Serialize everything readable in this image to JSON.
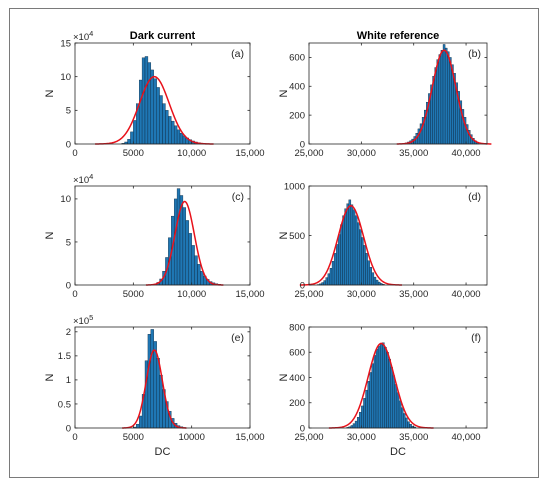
{
  "colors": {
    "bar": "#1f77b4",
    "bar_edge": "#0b1f33",
    "fit": "#e8121b",
    "axis": "#262626"
  },
  "chart_data": [
    {
      "id": "a",
      "type": "bar",
      "subplot_label": "(a)",
      "title": "Dark current",
      "xlabel": "",
      "ylabel": "N",
      "xlim": [
        0,
        15000
      ],
      "ylim": [
        0,
        150000
      ],
      "xticks": [
        "0",
        "5000",
        "10,000",
        "15,000"
      ],
      "xtick_values": [
        0,
        5000,
        10000,
        15000
      ],
      "yticks": [
        "0",
        "5",
        "10",
        "15"
      ],
      "ytick_values": [
        0,
        50000,
        100000,
        150000
      ],
      "y_exponent": "4",
      "bin_width": 250,
      "bin_centers": [
        4125,
        4375,
        4625,
        4875,
        5125,
        5375,
        5625,
        5875,
        6125,
        6375,
        6625,
        6875,
        7125,
        7375,
        7625,
        7875,
        8125,
        8375,
        8625,
        8875,
        9125,
        9375,
        9625,
        9875,
        10125,
        10375,
        10625,
        10875,
        11125,
        11375,
        11625
      ],
      "values": [
        1000,
        3000,
        7000,
        18000,
        35000,
        60000,
        95000,
        128000,
        130000,
        121000,
        110000,
        97000,
        84000,
        72000,
        60000,
        50000,
        41000,
        34000,
        27000,
        21000,
        16000,
        12000,
        9000,
        6500,
        4500,
        3000,
        2000,
        1300,
        800,
        400,
        200
      ],
      "fit": {
        "mean": 6800,
        "sd": 1270,
        "peak": 100000
      }
    },
    {
      "id": "b",
      "type": "bar",
      "subplot_label": "(b)",
      "title": "White reference",
      "xlabel": "",
      "ylabel": "N",
      "xlim": [
        25000,
        42000
      ],
      "ylim": [
        0,
        700
      ],
      "xticks": [
        "25,000",
        "30,000",
        "35,000",
        "40,000"
      ],
      "xtick_values": [
        25000,
        30000,
        35000,
        40000
      ],
      "yticks": [
        "0",
        "200",
        "400",
        "600"
      ],
      "ytick_values": [
        0,
        200,
        400,
        600
      ],
      "y_exponent": "",
      "bin_width": 200,
      "bin_centers": [
        34100,
        34300,
        34500,
        34700,
        34900,
        35100,
        35300,
        35500,
        35700,
        35900,
        36100,
        36300,
        36500,
        36700,
        36900,
        37100,
        37300,
        37500,
        37700,
        37900,
        38100,
        38300,
        38500,
        38700,
        38900,
        39100,
        39300,
        39500,
        39700,
        39900,
        40100,
        40300,
        40500,
        40700,
        40900,
        41100
      ],
      "values": [
        5,
        8,
        14,
        22,
        34,
        52,
        75,
        105,
        140,
        185,
        235,
        290,
        350,
        410,
        470,
        530,
        585,
        620,
        650,
        690,
        665,
        640,
        600,
        550,
        490,
        425,
        365,
        300,
        240,
        185,
        135,
        95,
        65,
        40,
        22,
        12
      ],
      "fit": {
        "mean": 37900,
        "sd": 1130,
        "peak": 650
      }
    },
    {
      "id": "c",
      "type": "bar",
      "subplot_label": "(c)",
      "title": "",
      "xlabel": "",
      "ylabel": "N",
      "xlim": [
        0,
        15000
      ],
      "ylim": [
        0,
        115000
      ],
      "xticks": [
        "0",
        "5000",
        "10,000",
        "15,000"
      ],
      "xtick_values": [
        0,
        5000,
        10000,
        15000
      ],
      "yticks": [
        "0",
        "5",
        "10"
      ],
      "ytick_values": [
        0,
        50000,
        100000
      ],
      "y_exponent": "4",
      "bin_width": 250,
      "bin_centers": [
        6875,
        7125,
        7375,
        7625,
        7875,
        8125,
        8375,
        8625,
        8875,
        9125,
        9375,
        9625,
        9875,
        10125,
        10375,
        10625,
        10875,
        11125,
        11375,
        11625,
        11875,
        12125,
        12375
      ],
      "values": [
        1000,
        3000,
        7000,
        16000,
        32000,
        55000,
        80000,
        100000,
        112000,
        104000,
        90000,
        75000,
        60000,
        46000,
        34000,
        24000,
        16000,
        10500,
        6500,
        4000,
        2500,
        1500,
        800
      ],
      "fit": {
        "mean": 9400,
        "sd": 830,
        "peak": 97000
      }
    },
    {
      "id": "d",
      "type": "bar",
      "subplot_label": "(d)",
      "title": "",
      "xlabel": "",
      "ylabel": "N",
      "xlim": [
        25000,
        42000
      ],
      "ylim": [
        0,
        1000
      ],
      "xticks": [
        "25,000",
        "30,000",
        "35,000",
        "40,000"
      ],
      "xtick_values": [
        25000,
        30000,
        35000,
        40000
      ],
      "yticks": [
        "0",
        "500",
        "1000"
      ],
      "ytick_values": [
        0,
        500,
        1000
      ],
      "y_exponent": "",
      "bin_width": 200,
      "bin_centers": [
        25900,
        26100,
        26300,
        26500,
        26700,
        26900,
        27100,
        27300,
        27500,
        27700,
        27900,
        28100,
        28300,
        28500,
        28700,
        28900,
        29100,
        29300,
        29500,
        29700,
        29900,
        30100,
        30300,
        30500,
        30700,
        30900,
        31100,
        31300,
        31500,
        31700,
        31900,
        32100
      ],
      "values": [
        5,
        12,
        25,
        45,
        75,
        115,
        170,
        240,
        320,
        410,
        510,
        610,
        700,
        770,
        820,
        860,
        810,
        760,
        700,
        630,
        560,
        480,
        400,
        320,
        245,
        180,
        125,
        80,
        50,
        30,
        16,
        8
      ],
      "fit": {
        "mean": 29000,
        "sd": 1220,
        "peak": 800
      }
    },
    {
      "id": "e",
      "type": "bar",
      "subplot_label": "(e)",
      "title": "",
      "xlabel": "DC",
      "ylabel": "N",
      "xlim": [
        0,
        15000
      ],
      "ylim": [
        0,
        210000
      ],
      "xticks": [
        "0",
        "5000",
        "10000",
        "15,000"
      ],
      "xtick_values": [
        0,
        5000,
        10000,
        15000
      ],
      "yticks": [
        "0",
        "0.5",
        "1",
        "1.5",
        "2"
      ],
      "ytick_values": [
        0,
        50000,
        100000,
        150000,
        200000
      ],
      "y_exponent": "5",
      "bin_width": 250,
      "bin_centers": [
        5125,
        5375,
        5625,
        5875,
        6125,
        6375,
        6625,
        6875,
        7125,
        7375,
        7625,
        7875,
        8125,
        8375,
        8625,
        8875,
        9125,
        9375
      ],
      "values": [
        2000,
        8000,
        25000,
        70000,
        140000,
        195000,
        205000,
        180000,
        145000,
        110000,
        80000,
        55000,
        35000,
        20000,
        10000,
        5000,
        2500,
        1000
      ],
      "fit": {
        "mean": 6800,
        "sd": 690,
        "peak": 162000
      }
    },
    {
      "id": "f",
      "type": "bar",
      "subplot_label": "(f)",
      "title": "",
      "xlabel": "DC",
      "ylabel": "N",
      "xlim": [
        25000,
        42000
      ],
      "ylim": [
        0,
        800
      ],
      "xticks": [
        "25,000",
        "30,000",
        "35,000",
        "40,000"
      ],
      "xtick_values": [
        25000,
        30000,
        35000,
        40000
      ],
      "yticks": [
        "0",
        "200",
        "400",
        "600",
        "800"
      ],
      "ytick_values": [
        0,
        200,
        400,
        600,
        800
      ],
      "y_exponent": "",
      "bin_width": 200,
      "bin_centers": [
        28700,
        28900,
        29100,
        29300,
        29500,
        29700,
        29900,
        30100,
        30300,
        30500,
        30700,
        30900,
        31100,
        31300,
        31500,
        31700,
        31900,
        32100,
        32300,
        32500,
        32700,
        32900,
        33100,
        33300,
        33500,
        33700,
        33900,
        34100,
        34300,
        34500,
        34700,
        34900,
        35100
      ],
      "values": [
        5,
        10,
        20,
        35,
        55,
        85,
        125,
        175,
        235,
        300,
        370,
        440,
        510,
        575,
        625,
        650,
        665,
        675,
        640,
        600,
        545,
        480,
        415,
        345,
        280,
        215,
        160,
        115,
        80,
        50,
        30,
        15,
        8
      ],
      "fit": {
        "mean": 31900,
        "sd": 1250,
        "peak": 670
      }
    }
  ]
}
